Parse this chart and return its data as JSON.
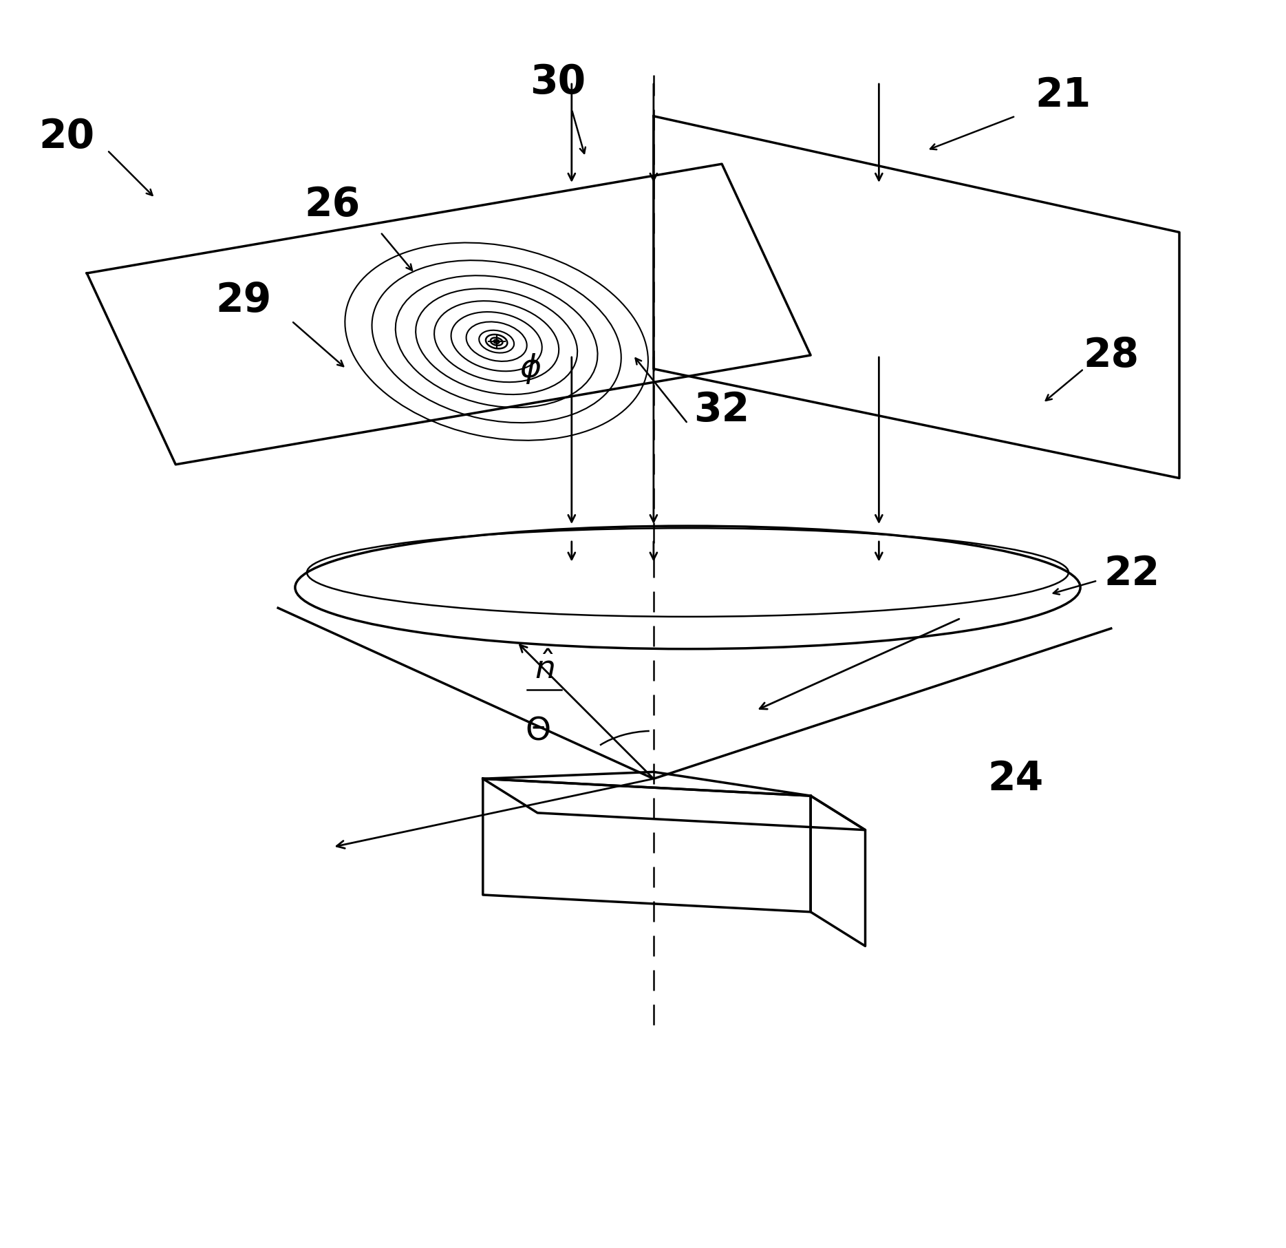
{
  "bg_color": "#ffffff",
  "line_color": "#000000",
  "figsize": [
    18.69,
    18.13
  ],
  "dpi": 100
}
